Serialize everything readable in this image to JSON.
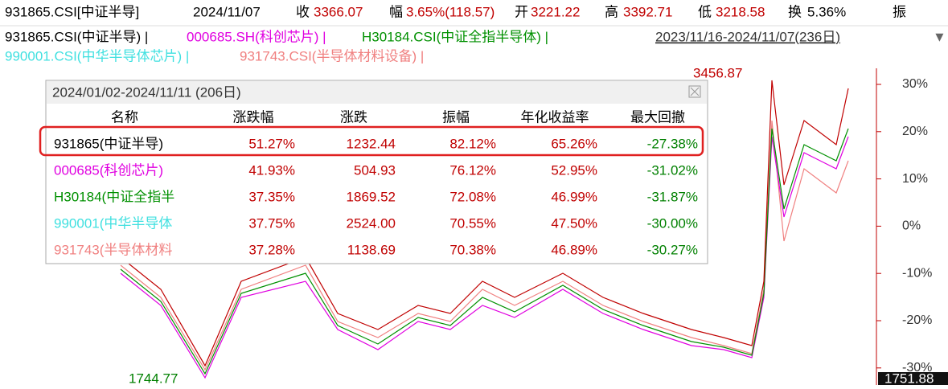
{
  "quote_bar": {
    "code": "931865.CSI[中证半导]",
    "date": "2024/11/07",
    "items": [
      {
        "label": "收",
        "value": "3366.07"
      },
      {
        "label": "幅",
        "value": "3.65%(118.57)"
      },
      {
        "label": "开",
        "value": "3221.22"
      },
      {
        "label": "高",
        "value": "3392.71"
      },
      {
        "label": "低",
        "value": "3218.58"
      },
      {
        "label": "换",
        "value": "5.36%"
      }
    ],
    "tail": "振"
  },
  "legend": {
    "items": [
      "931865.CSI(中证半导) |",
      "000685.SH(科创芯片) |",
      "H30184.CSI(中证全指半导体) |",
      "990001.CSI(中华半导体芯片) |",
      "931743.CSI(半导体材料设备) |"
    ],
    "range": "2023/11/16-2024/11/07(236日)",
    "arrow": "▼"
  },
  "chart_labels": {
    "high": "3456.87",
    "low": "1744.77",
    "last": "1751.88"
  },
  "axis": {
    "ticks": [
      "30%",
      "20%",
      "10%",
      "0%",
      "-10%",
      "-20%",
      "-30%"
    ]
  },
  "popup": {
    "title": "2024/01/02-2024/11/11 (206日)",
    "table": {
      "headers": [
        "名称",
        "涨跌幅",
        "涨跌",
        "振幅",
        "年化收益率",
        "最大回撤"
      ],
      "rows": [
        [
          "931865(中证半导)",
          "51.27%",
          "1232.44",
          "82.12%",
          "65.26%",
          "-27.38%"
        ],
        [
          "000685(科创芯片)",
          "41.93%",
          "504.93",
          "76.12%",
          "52.95%",
          "-31.02%"
        ],
        [
          "H30184(中证全指半",
          "37.35%",
          "1869.52",
          "72.08%",
          "46.99%",
          "-31.87%"
        ],
        [
          "990001(中华半导体",
          "37.75%",
          "2524.00",
          "70.55%",
          "47.50%",
          "-30.00%"
        ],
        [
          "931743(半导体材料",
          "37.28%",
          "1138.69",
          "70.38%",
          "46.89%",
          "-30.27%"
        ]
      ]
    }
  }
}
